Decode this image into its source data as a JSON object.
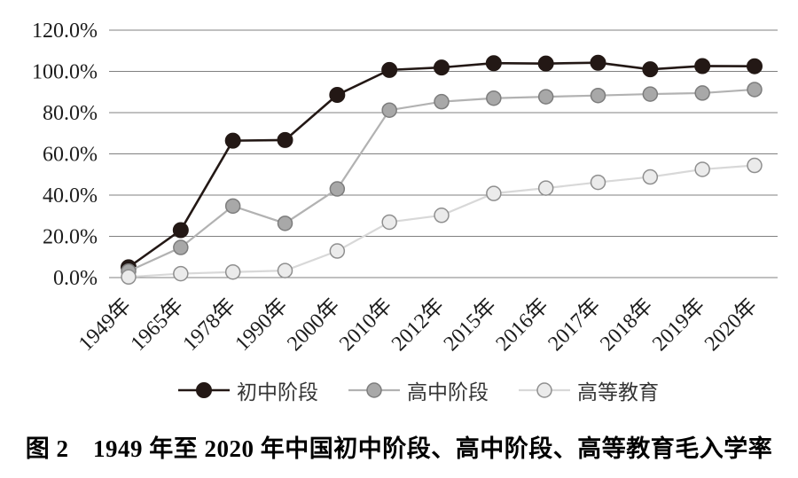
{
  "caption": {
    "text": "图 2　1949 年至 2020 年中国初中阶段、高中阶段、高等教育毛入学率"
  },
  "chart_data": {
    "type": "line",
    "title": "",
    "xlabel": "",
    "ylabel": "",
    "categories": [
      "1949年",
      "1965年",
      "1978年",
      "1990年",
      "2000年",
      "2010年",
      "2012年",
      "2015年",
      "2016年",
      "2017年",
      "2018年",
      "2019年",
      "2020年"
    ],
    "series": [
      {
        "name": "初中阶段",
        "values": [
          5.0,
          23.0,
          66.4,
          66.7,
          88.6,
          100.7,
          101.9,
          104.0,
          103.8,
          104.2,
          101.0,
          102.6,
          102.5
        ],
        "line_color": "#231815",
        "line_width": 2.6,
        "marker_fill": "#231815",
        "marker_stroke": "#231815",
        "marker_stroke_width": 1,
        "marker_radius": 8.5
      },
      {
        "name": "高中阶段",
        "values": [
          3.1,
          14.6,
          34.7,
          26.3,
          43.0,
          81.2,
          85.3,
          87.0,
          87.7,
          88.3,
          89.0,
          89.5,
          91.2
        ],
        "line_color": "#b2b2b2",
        "line_width": 2.2,
        "marker_fill": "#a8a8a8",
        "marker_stroke": "#7d7d7d",
        "marker_stroke_width": 1.5,
        "marker_radius": 8
      },
      {
        "name": "高等教育",
        "values": [
          0.3,
          1.9,
          2.7,
          3.4,
          12.9,
          26.9,
          30.2,
          40.8,
          43.4,
          46.2,
          48.8,
          52.5,
          54.4
        ],
        "line_color": "#d8d8d8",
        "line_width": 2.2,
        "marker_fill": "#ebebeb",
        "marker_stroke": "#8f8f8f",
        "marker_stroke_width": 1.5,
        "marker_radius": 8
      }
    ],
    "ylim": [
      0,
      120
    ],
    "ytick_step": 20,
    "ytick_labels": [
      "120.0%",
      "100.0%",
      "80.0%",
      "60.0%",
      "40.0%",
      "20.0%",
      "0.0%"
    ],
    "grid": "horizontal",
    "gridline_color": "#808080",
    "legend_position": "bottom"
  }
}
